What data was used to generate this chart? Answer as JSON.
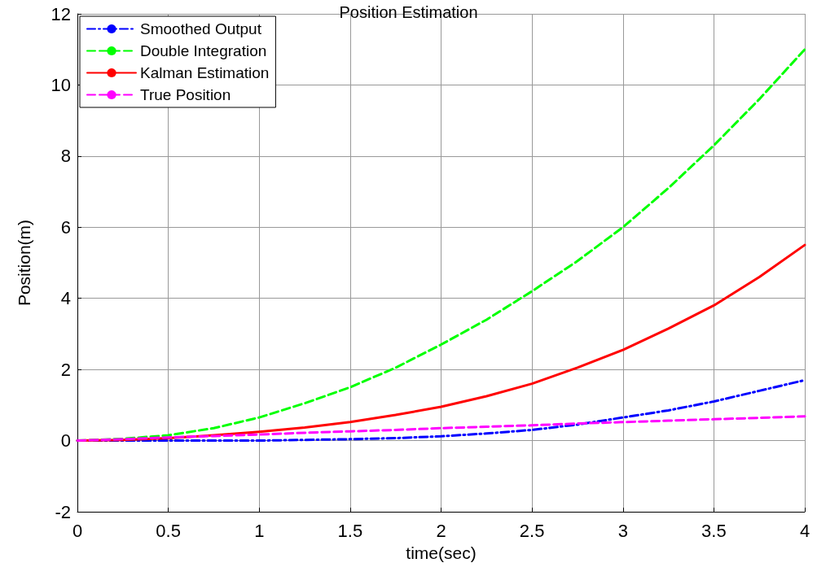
{
  "chart_data": {
    "type": "line",
    "title": "Position Estimation",
    "xlabel": "time(sec)",
    "ylabel": "Position(m)",
    "x": [
      0,
      0.25,
      0.5,
      0.75,
      1,
      1.25,
      1.5,
      1.75,
      2,
      2.25,
      2.5,
      2.75,
      3,
      3.25,
      3.5,
      3.75,
      4
    ],
    "series": [
      {
        "name": "Smoothed Output",
        "color": "#0000ff",
        "line_style": "dashdot",
        "values": [
          0,
          0,
          0,
          0,
          0,
          0.02,
          0.04,
          0.07,
          0.12,
          0.2,
          0.3,
          0.45,
          0.65,
          0.85,
          1.1,
          1.4,
          1.7
        ]
      },
      {
        "name": "Double Integration",
        "color": "#00ff00",
        "line_style": "dashed",
        "values": [
          0,
          0.05,
          0.15,
          0.35,
          0.65,
          1.05,
          1.5,
          2.05,
          2.7,
          3.4,
          4.2,
          5.05,
          6.0,
          7.1,
          8.3,
          9.6,
          11.0
        ]
      },
      {
        "name": "Kalman Estimation",
        "color": "#ff0000",
        "line_style": "solid",
        "values": [
          0,
          0.02,
          0.07,
          0.15,
          0.25,
          0.37,
          0.52,
          0.72,
          0.95,
          1.25,
          1.6,
          2.05,
          2.55,
          3.15,
          3.8,
          4.6,
          5.5
        ]
      },
      {
        "name": "True Position",
        "color": "#ff00ff",
        "line_style": "dashed",
        "values": [
          0,
          0.04,
          0.09,
          0.13,
          0.17,
          0.22,
          0.26,
          0.3,
          0.35,
          0.39,
          0.43,
          0.48,
          0.52,
          0.56,
          0.6,
          0.64,
          0.68
        ]
      }
    ],
    "xlim": [
      0,
      4
    ],
    "xticks": [
      0,
      0.5,
      1,
      1.5,
      2,
      2.5,
      3,
      3.5,
      4
    ],
    "ylim": [
      -2,
      12
    ],
    "yticks": [
      -2,
      0,
      2,
      4,
      6,
      8,
      10,
      12
    ],
    "grid": true,
    "legend": "top left",
    "marker": "none"
  }
}
